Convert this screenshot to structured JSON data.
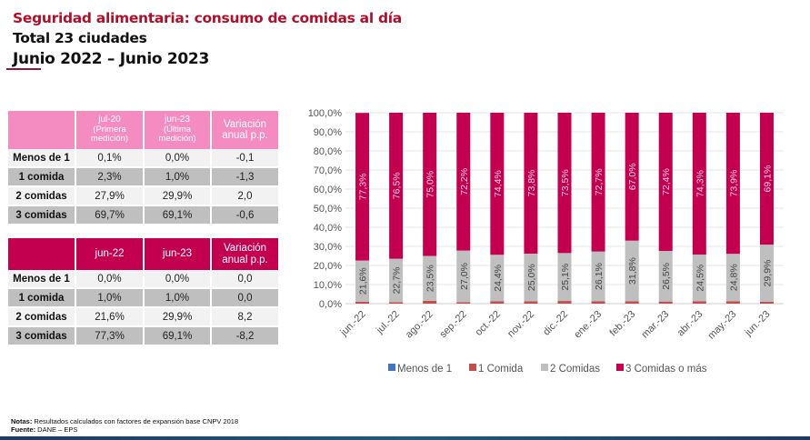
{
  "header": {
    "title": "Seguridad alimentaria: consumo de comidas al día",
    "subtitle": "Total 23 ciudades",
    "period": "Junio 2022 – Junio 2023"
  },
  "table1": {
    "headers": [
      {
        "main": "jul-20",
        "sub": "(Primera medición)"
      },
      {
        "main": "jun-23",
        "sub": "(Última medición)"
      },
      {
        "main": "Variación anual p.p.",
        "sub": ""
      }
    ],
    "rows": [
      {
        "label": "Menos de 1",
        "a": "0,1%",
        "b": "0,0%",
        "v": "-0,1"
      },
      {
        "label": "1 comida",
        "a": "2,3%",
        "b": "1,0%",
        "v": "-1,3"
      },
      {
        "label": "2 comidas",
        "a": "27,9%",
        "b": "29,9%",
        "v": "2,0"
      },
      {
        "label": "3 comidas",
        "a": "69,7%",
        "b": "69,1%",
        "v": "-0,6"
      }
    ]
  },
  "table2": {
    "headers": [
      "jun-22",
      "jun-23",
      "Variación anual p.p."
    ],
    "rows": [
      {
        "label": "Menos de 1",
        "a": "0,0%",
        "b": "0,0%",
        "v": "0,0"
      },
      {
        "label": "1 comida",
        "a": "1,0%",
        "b": "1,0%",
        "v": "0,0"
      },
      {
        "label": "2 comidas",
        "a": "21,6%",
        "b": "29,9%",
        "v": "8,2"
      },
      {
        "label": "3 comidas",
        "a": "77,3%",
        "b": "69,1%",
        "v": "-8,2"
      }
    ]
  },
  "chart_data": {
    "type": "bar",
    "stacked": true,
    "title": "",
    "xlabel": "",
    "ylabel": "",
    "ylim": [
      0,
      100
    ],
    "grid": true,
    "legend": "bottom",
    "categories": [
      "jun.-22",
      "jul.-22",
      "ago.-22",
      "sep.-22",
      "oct.-22",
      "nov.-22",
      "dic.-22",
      "ene.-23",
      "feb.-23",
      "mar.-23",
      "abr.-23",
      "may.-23",
      "jun.-23"
    ],
    "yticks": [
      "0,0%",
      "10,0%",
      "20,0%",
      "30,0%",
      "40,0%",
      "50,0%",
      "60,0%",
      "70,0%",
      "80,0%",
      "90,0%",
      "100,0%"
    ],
    "series": [
      {
        "name": "Menos de 1",
        "color": "#4472c4",
        "values": [
          0,
          0,
          0,
          0,
          0,
          0,
          0,
          0,
          0,
          0,
          0,
          0,
          0
        ]
      },
      {
        "name": "1 Comida",
        "color": "#c0504d",
        "values": [
          1.0,
          0.8,
          1.5,
          0.8,
          1.2,
          1.2,
          1.4,
          1.2,
          1.2,
          1.1,
          1.2,
          1.3,
          1.0
        ]
      },
      {
        "name": "2 Comidas",
        "color": "#bfbfbf",
        "values": [
          21.6,
          22.7,
          23.5,
          27.0,
          24.4,
          25.0,
          25.1,
          26.1,
          31.8,
          26.5,
          24.5,
          24.8,
          29.9
        ],
        "labels": [
          "21,6%",
          "22,7%",
          "23,5%",
          "27,0%",
          "24,4%",
          "25,0%",
          "25,1%",
          "26,1%",
          "31,8%",
          "26,5%",
          "24,5%",
          "24,8%",
          "29,9%"
        ]
      },
      {
        "name": "3 Comidas o más",
        "color": "#c2004f",
        "values": [
          77.3,
          76.5,
          75.0,
          72.2,
          74.4,
          73.8,
          73.5,
          72.7,
          67.0,
          72.4,
          74.3,
          73.9,
          69.1
        ],
        "labels": [
          "77,3%",
          "76,5%",
          "75,0%",
          "72,2%",
          "74,4%",
          "73,8%",
          "73,5%",
          "72,7%",
          "67,0%",
          "72,4%",
          "74,3%",
          "73,9%",
          "69,1%"
        ]
      }
    ]
  },
  "footer": {
    "notes_label": "Notas:",
    "notes": " Resultados calculados con factores de expansión base CNPV 2018",
    "source_label": "Fuente:",
    "source": " DANE – EPS"
  }
}
